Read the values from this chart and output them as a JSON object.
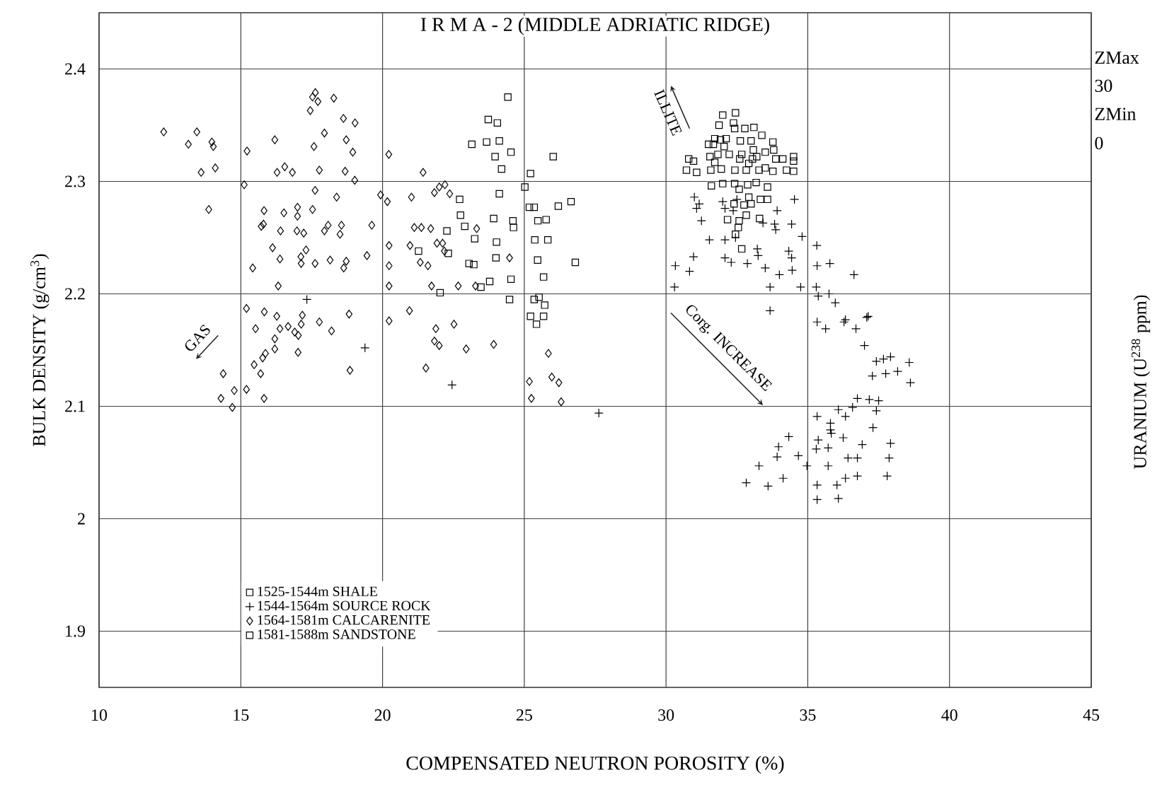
{
  "chart_data": {
    "type": "scatter",
    "title": "I R M A - 2 (MIDDLE ADRIATIC RIDGE)",
    "xlabel": "COMPENSATED NEUTRON POROSITY (%)",
    "ylabel": "BULK DENSITY  (g/cm$^{3}$)",
    "y2label": "URANIUM   (U$^{238}$ ppm)",
    "xlim": [
      10,
      45
    ],
    "ylim": [
      1.85,
      2.45
    ],
    "xticks": [
      10,
      15,
      20,
      25,
      30,
      35,
      40,
      45
    ],
    "yticks": [
      1.9,
      2,
      2.1,
      2.2,
      2.3,
      2.4
    ],
    "grid": true,
    "legend": "bottom left",
    "annotations": [
      "GAS",
      "ILLITE",
      "Corg. INCREASE",
      "ZMax",
      "30",
      "ZMin",
      "0"
    ],
    "series": [
      {
        "name": "1525-1544m SHALE",
        "marker": "square",
        "color": "#000000",
        "x": [
          32.0,
          32.45,
          31.87,
          32.38,
          32.42,
          32.78,
          33.1,
          33.38,
          31.72,
          31.92,
          32.12,
          32.62,
          33.0,
          33.77,
          31.5,
          31.67,
          32.05,
          32.23,
          32.67,
          33.08,
          33.5,
          33.8,
          31.55,
          31.83,
          31.72,
          30.8,
          30.97,
          33.87,
          34.12,
          34.5,
          34.5,
          30.72,
          31.08,
          31.58,
          31.95,
          32.43,
          32.83,
          32.92,
          33.28,
          33.5,
          33.77,
          34.25,
          34.5,
          32.6,
          33.05,
          33.2,
          31.6,
          32.0,
          32.42,
          32.88,
          33.18,
          33.58,
          32.58,
          32.92,
          33.33,
          33.58,
          32.4,
          32.75,
          33.0,
          32.17,
          32.58,
          32.83,
          33.3,
          32.55,
          32.45,
          32.67
        ],
        "values": [
          2.359,
          2.361,
          2.35,
          2.352,
          2.347,
          2.347,
          2.348,
          2.341,
          2.338,
          2.337,
          2.338,
          2.336,
          2.336,
          2.335,
          2.333,
          2.333,
          2.331,
          2.324,
          2.324,
          2.328,
          2.326,
          2.328,
          2.322,
          2.324,
          2.317,
          2.32,
          2.318,
          2.32,
          2.32,
          2.322,
          2.318,
          2.31,
          2.308,
          2.31,
          2.311,
          2.31,
          2.31,
          2.316,
          2.31,
          2.312,
          2.309,
          2.31,
          2.309,
          2.32,
          2.32,
          2.322,
          2.296,
          2.298,
          2.298,
          2.297,
          2.299,
          2.295,
          2.293,
          2.286,
          2.284,
          2.284,
          2.28,
          2.279,
          2.28,
          2.266,
          2.265,
          2.27,
          2.267,
          2.259,
          2.253,
          2.24
        ]
      },
      {
        "name": "1544-1564m SOURCE ROCK",
        "marker": "cross",
        "color": "#000000",
        "x": [
          17.33,
          19.38,
          22.45,
          27.63,
          31.0,
          31.17,
          31.08,
          31.25,
          32.0,
          32.08,
          32.37,
          32.5,
          33.92,
          33.83,
          33.87,
          33.42,
          34.53,
          34.43,
          34.8,
          31.53,
          32.08,
          32.45,
          30.97,
          30.33,
          30.83,
          32.08,
          32.3,
          32.87,
          33.22,
          33.5,
          33.25,
          34.33,
          34.43,
          34.45,
          34.0,
          34.75,
          33.67,
          30.3,
          35.32,
          35.33,
          35.78,
          36.63,
          35.3,
          35.37,
          35.75,
          35.97,
          33.67,
          36.33,
          37.08,
          35.33,
          35.63,
          36.28,
          36.7,
          37.13,
          37.0,
          37.42,
          37.67,
          37.92,
          38.58,
          37.28,
          37.75,
          38.17,
          38.62,
          36.75,
          37.17,
          37.5,
          37.42,
          35.33,
          35.8,
          36.08,
          36.33,
          36.58,
          35.83,
          35.8,
          35.37,
          35.72,
          36.25,
          37.3,
          34.33,
          33.97,
          33.92,
          34.67,
          34.97,
          33.28,
          32.83,
          33.6,
          34.13,
          35.3,
          35.72,
          36.42,
          36.75,
          36.92,
          37.92,
          37.87,
          37.8,
          35.33,
          36.03,
          36.33,
          36.75,
          35.33,
          36.08
        ],
        "values": [
          2.195,
          2.152,
          2.119,
          2.094,
          2.286,
          2.28,
          2.276,
          2.265,
          2.282,
          2.276,
          2.274,
          2.284,
          2.274,
          2.262,
          2.257,
          2.263,
          2.284,
          2.262,
          2.251,
          2.248,
          2.248,
          2.25,
          2.233,
          2.225,
          2.22,
          2.232,
          2.228,
          2.227,
          2.24,
          2.223,
          2.234,
          2.238,
          2.232,
          2.221,
          2.217,
          2.206,
          2.206,
          2.206,
          2.243,
          2.225,
          2.227,
          2.217,
          2.206,
          2.198,
          2.2,
          2.192,
          2.185,
          2.177,
          2.179,
          2.175,
          2.169,
          2.175,
          2.169,
          2.18,
          2.154,
          2.14,
          2.142,
          2.144,
          2.139,
          2.127,
          2.129,
          2.131,
          2.121,
          2.107,
          2.106,
          2.105,
          2.096,
          2.091,
          2.085,
          2.097,
          2.091,
          2.099,
          2.076,
          2.079,
          2.07,
          2.063,
          2.072,
          2.081,
          2.073,
          2.064,
          2.055,
          2.056,
          2.047,
          2.047,
          2.032,
          2.029,
          2.036,
          2.062,
          2.047,
          2.054,
          2.054,
          2.066,
          2.067,
          2.054,
          2.038,
          2.03,
          2.03,
          2.036,
          2.038,
          2.017,
          2.018
        ]
      },
      {
        "name": "1564-1581m CALCARENITE",
        "marker": "diamond",
        "color": "#000000",
        "x": [
          12.28,
          13.15,
          13.45,
          13.98,
          14.03,
          13.6,
          14.1,
          13.87,
          15.22,
          15.12,
          16.2,
          16.28,
          16.55,
          16.82,
          17.45,
          17.53,
          17.63,
          17.72,
          18.28,
          18.62,
          17.95,
          17.58,
          18.72,
          17.77,
          18.68,
          17.62,
          18.38,
          17.53,
          15.82,
          16.52,
          17.0,
          17.0,
          15.8,
          15.72,
          16.4,
          16.98,
          17.22,
          17.95,
          18.08,
          18.55,
          18.5,
          16.12,
          16.38,
          17.3,
          17.12,
          17.13,
          17.62,
          18.15,
          18.72,
          18.63,
          15.42,
          16.32,
          15.2,
          15.83,
          16.27,
          15.52,
          16.38,
          16.67,
          16.9,
          17.03,
          17.17,
          17.13,
          17.77,
          18.2,
          18.82,
          16.2,
          16.2,
          15.87,
          15.77,
          15.47,
          15.7,
          17.02,
          14.38,
          14.77,
          15.2,
          14.3,
          14.7,
          15.82,
          18.85,
          19.03,
          18.95,
          19.02,
          19.62,
          19.45,
          20.22,
          21.43,
          19.93,
          20.17,
          21.02,
          21.83,
          22.0,
          22.2,
          22.37,
          21.12,
          21.37,
          21.7,
          20.23,
          20.23,
          20.23,
          20.23,
          20.97,
          21.33,
          21.6,
          21.92,
          22.12,
          22.18,
          21.73,
          22.67,
          23.28,
          23.32,
          24.48,
          20.95,
          21.88,
          21.83,
          22.0,
          22.52,
          22.95,
          23.92,
          21.53,
          25.18,
          25.25,
          25.85,
          25.97,
          26.22,
          26.3
        ],
        "values": [
          2.344,
          2.333,
          2.344,
          2.335,
          2.331,
          2.308,
          2.312,
          2.275,
          2.327,
          2.297,
          2.337,
          2.308,
          2.313,
          2.308,
          2.363,
          2.375,
          2.379,
          2.371,
          2.374,
          2.356,
          2.343,
          2.331,
          2.337,
          2.31,
          2.309,
          2.292,
          2.286,
          2.275,
          2.274,
          2.272,
          2.277,
          2.269,
          2.262,
          2.26,
          2.256,
          2.256,
          2.254,
          2.256,
          2.261,
          2.261,
          2.253,
          2.241,
          2.231,
          2.239,
          2.233,
          2.227,
          2.227,
          2.23,
          2.229,
          2.223,
          2.223,
          2.207,
          2.187,
          2.184,
          2.18,
          2.169,
          2.169,
          2.171,
          2.166,
          2.163,
          2.181,
          2.173,
          2.175,
          2.167,
          2.182,
          2.16,
          2.151,
          2.147,
          2.143,
          2.137,
          2.129,
          2.148,
          2.129,
          2.114,
          2.115,
          2.107,
          2.099,
          2.107,
          2.132,
          2.352,
          2.326,
          2.301,
          2.261,
          2.234,
          2.324,
          2.308,
          2.288,
          2.282,
          2.286,
          2.29,
          2.295,
          2.297,
          2.289,
          2.259,
          2.259,
          2.258,
          2.243,
          2.225,
          2.207,
          2.176,
          2.243,
          2.228,
          2.225,
          2.245,
          2.245,
          2.238,
          2.207,
          2.207,
          2.207,
          2.258,
          2.232,
          2.185,
          2.169,
          2.158,
          2.154,
          2.173,
          2.151,
          2.155,
          2.134,
          2.122,
          2.107,
          2.147,
          2.126,
          2.121,
          2.104
        ]
      },
      {
        "name": "1581-1588m SANDSTONE",
        "marker": "square",
        "color": "#000000",
        "x": [
          24.42,
          23.73,
          24.05,
          23.15,
          23.67,
          24.12,
          24.53,
          23.97,
          24.2,
          26.02,
          25.22,
          25.02,
          24.12,
          22.72,
          22.75,
          22.9,
          22.27,
          23.25,
          23.92,
          24.6,
          24.62,
          24.02,
          24.0,
          25.18,
          25.35,
          25.48,
          25.77,
          26.2,
          26.65,
          25.37,
          25.83,
          25.47,
          26.8,
          25.68,
          24.53,
          23.78,
          23.47,
          23.05,
          23.22,
          21.27,
          22.32,
          22.03,
          24.48,
          25.35,
          25.52,
          25.72,
          25.22,
          25.43,
          25.68
        ],
        "values": [
          2.375,
          2.355,
          2.352,
          2.333,
          2.335,
          2.336,
          2.326,
          2.322,
          2.311,
          2.322,
          2.307,
          2.295,
          2.289,
          2.284,
          2.27,
          2.26,
          2.256,
          2.249,
          2.267,
          2.265,
          2.259,
          2.246,
          2.232,
          2.277,
          2.277,
          2.265,
          2.266,
          2.278,
          2.282,
          2.248,
          2.248,
          2.23,
          2.228,
          2.215,
          2.213,
          2.211,
          2.206,
          2.227,
          2.226,
          2.238,
          2.236,
          2.201,
          2.195,
          2.195,
          2.197,
          2.19,
          2.18,
          2.173,
          2.18
        ]
      }
    ]
  }
}
